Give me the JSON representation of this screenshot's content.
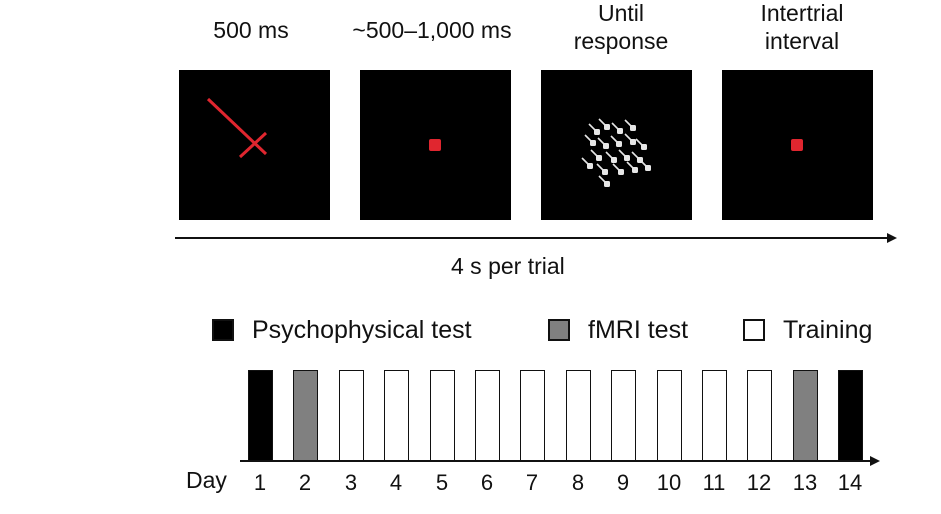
{
  "trial": {
    "stage_labels": [
      [
        "500 ms"
      ],
      [
        "~500–1,000 ms"
      ],
      [
        "Until",
        "response"
      ],
      [
        "Intertrial",
        "interval"
      ]
    ],
    "timeline_label": "4 s per trial"
  },
  "legend": [
    {
      "label": "Psychophysical test",
      "color": "#000000"
    },
    {
      "label": "fMRI test",
      "color": "#808080"
    },
    {
      "label": "Training",
      "color": "#ffffff"
    }
  ],
  "schedule": {
    "axis_label": "Day",
    "days": [
      "1",
      "2",
      "3",
      "4",
      "5",
      "6",
      "7",
      "8",
      "9",
      "10",
      "11",
      "12",
      "13",
      "14"
    ],
    "types": [
      "psychophysical",
      "fmri",
      "training",
      "training",
      "training",
      "training",
      "training",
      "training",
      "training",
      "training",
      "training",
      "training",
      "fmri",
      "psychophysical"
    ]
  },
  "colors": {
    "psychophysical": "#000000",
    "fmri": "#808080",
    "training": "#ffffff",
    "stimulus_red": "#e0262f",
    "dot_white": "#e6e6e6"
  }
}
